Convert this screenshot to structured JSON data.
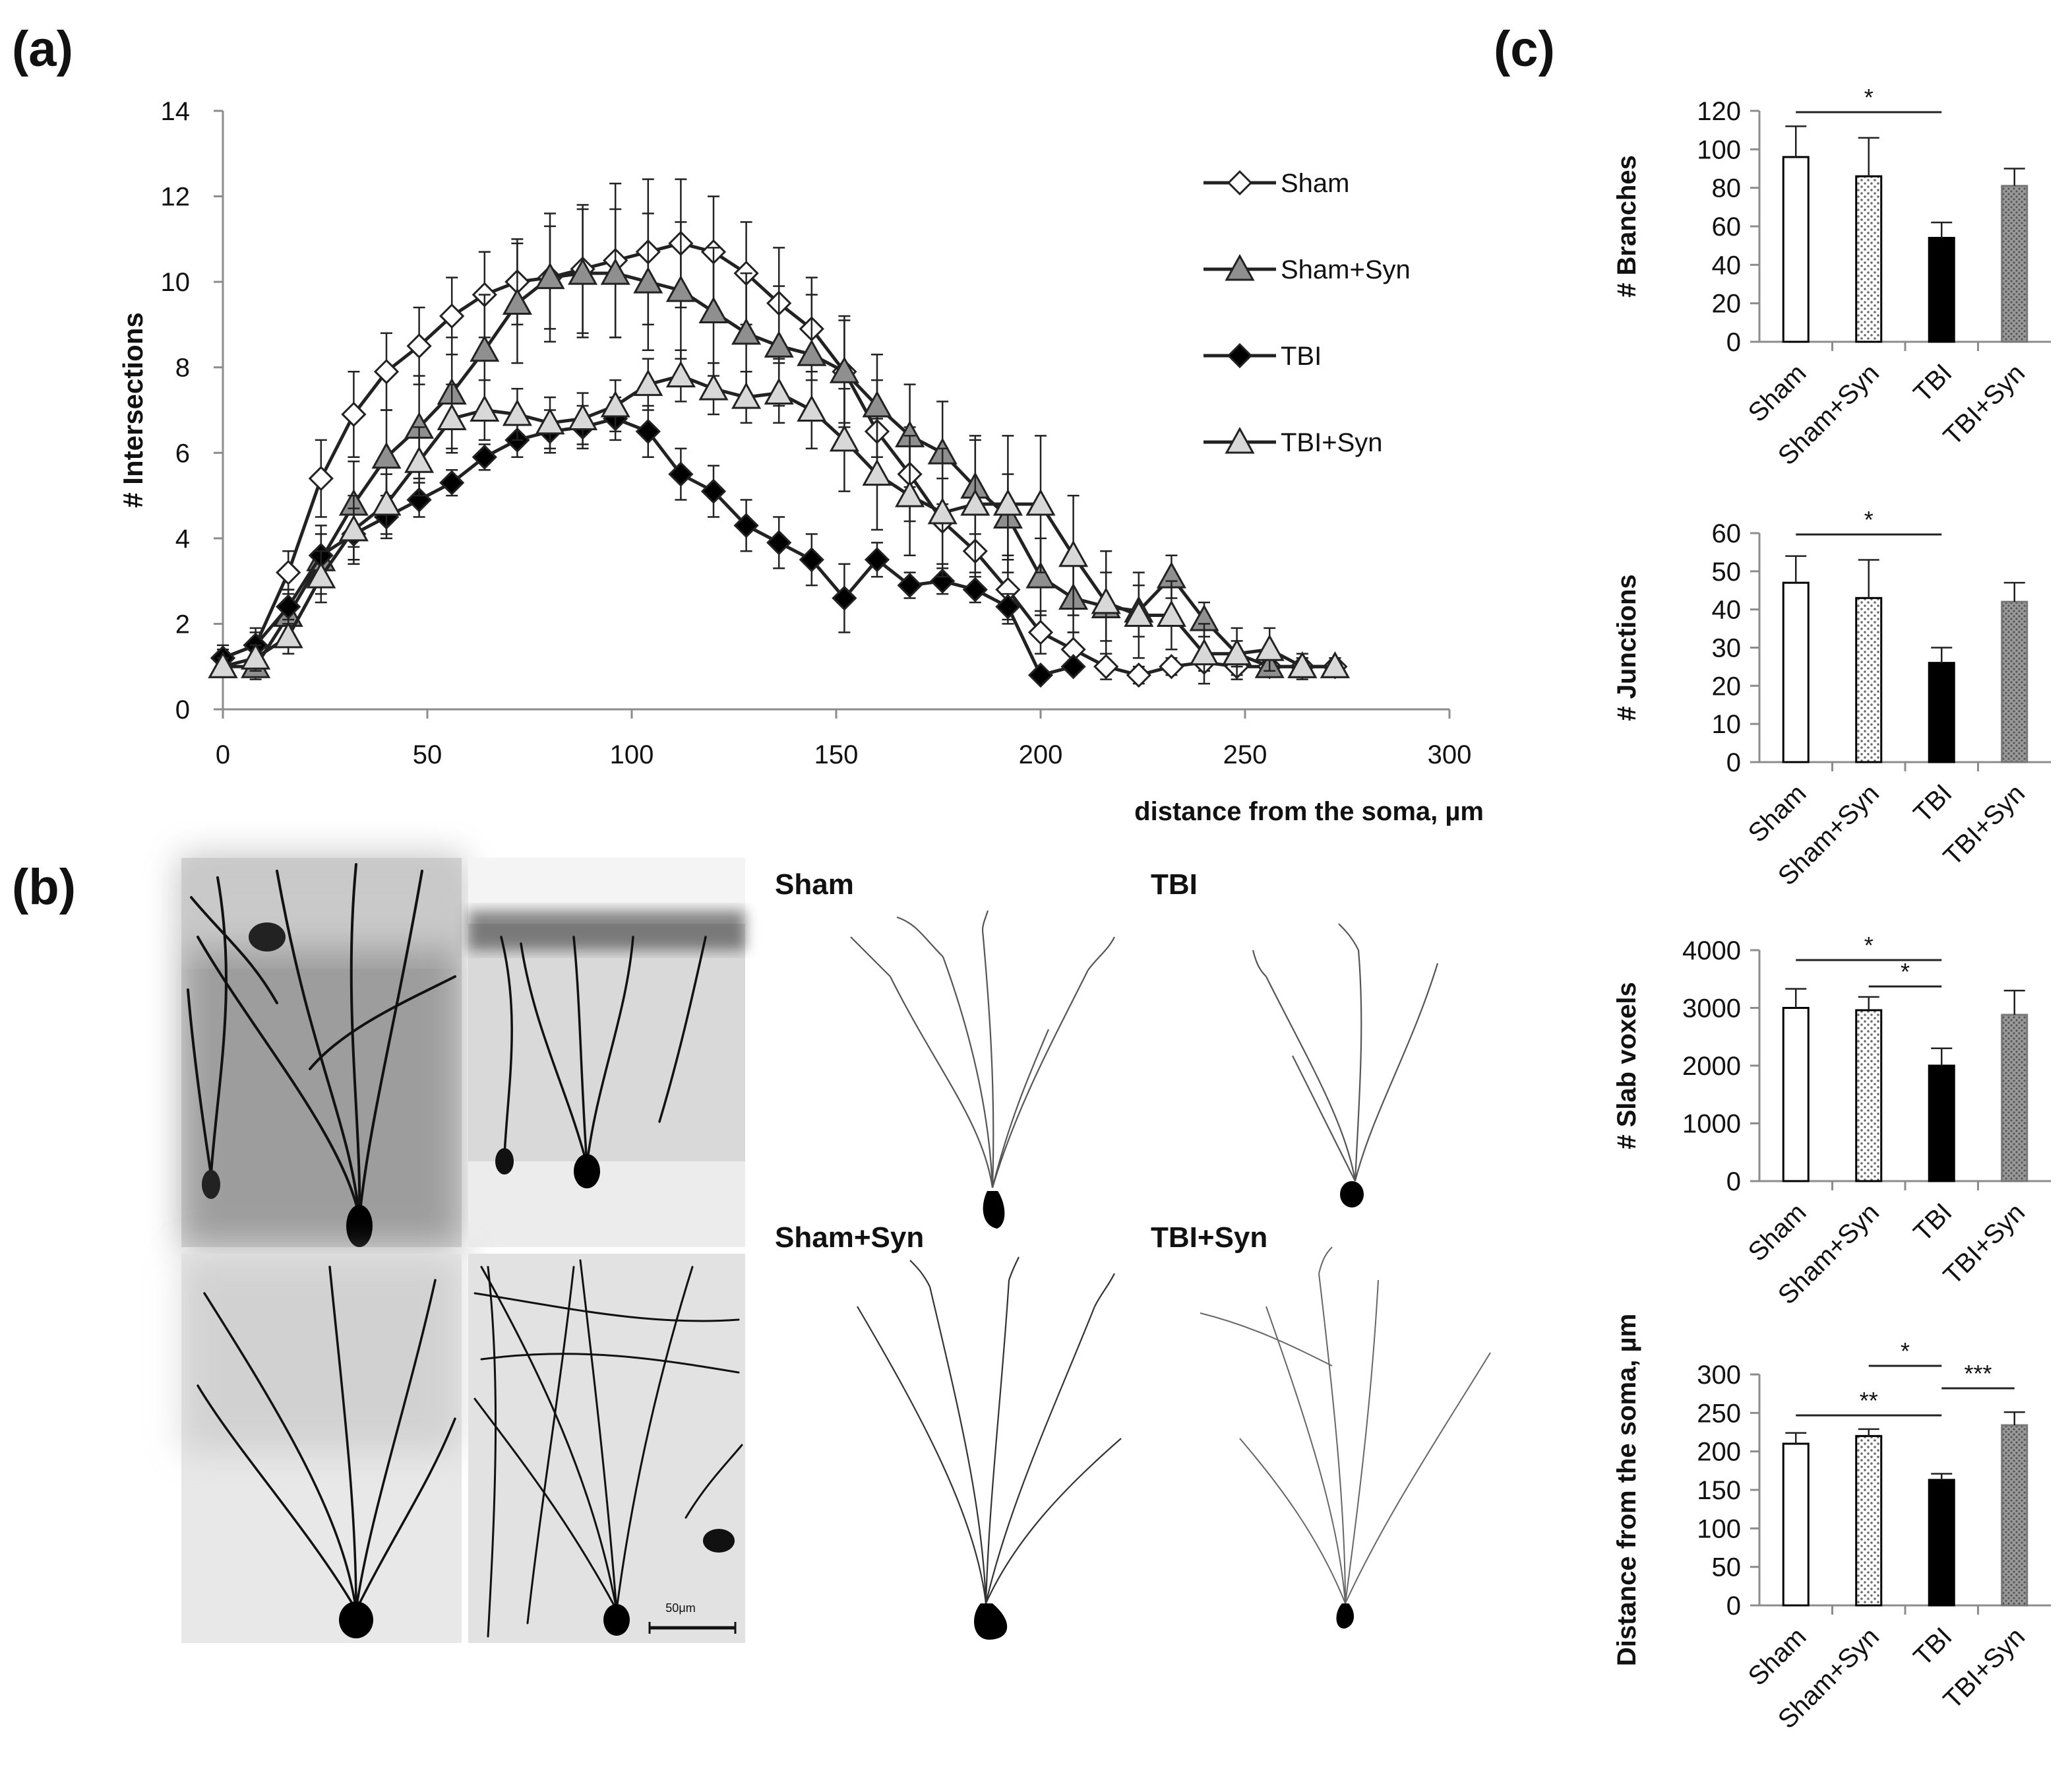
{
  "panel_labels": {
    "a": "(a)",
    "b": "(b)",
    "c": "(c)"
  },
  "colors": {
    "ink": "#111111",
    "grid_gray": "#8c8c8c",
    "sham_syn_fill": "#9a9a9a",
    "tbi_syn_fill": "#d6d6d6",
    "tbi_fill": "#000000",
    "sham_fill": "#ffffff"
  },
  "panel_b": {
    "labels": {
      "sham": "Sham",
      "tbi": "TBI",
      "sham_syn": "Sham+Syn",
      "tbi_syn": "TBI+Syn"
    },
    "scale_bar_label": "50μm"
  },
  "chart_data": [
    {
      "id": "sholl",
      "type": "line",
      "title": "",
      "xlabel": "distance from the soma, µm",
      "ylabel": "# Intersections",
      "xlim": [
        0,
        300
      ],
      "ylim": [
        0,
        14
      ],
      "xticks": [
        0,
        50,
        100,
        150,
        200,
        250,
        300
      ],
      "yticks": [
        0,
        2,
        4,
        6,
        8,
        10,
        12,
        14
      ],
      "legend_position": "right",
      "series": [
        {
          "name": "Sham",
          "marker": "diamond-open",
          "x": [
            0,
            8,
            16,
            24,
            32,
            40,
            48,
            56,
            64,
            72,
            80,
            88,
            96,
            104,
            112,
            120,
            128,
            136,
            144,
            152,
            160,
            168,
            176,
            184,
            192,
            200,
            208,
            216,
            224,
            232,
            240,
            248,
            256,
            264,
            272
          ],
          "y": [
            1.2,
            1.5,
            3.2,
            5.4,
            6.9,
            7.9,
            8.5,
            9.2,
            9.7,
            10.0,
            10.1,
            10.3,
            10.5,
            10.7,
            10.9,
            10.7,
            10.2,
            9.5,
            8.9,
            7.9,
            6.5,
            5.5,
            4.4,
            3.7,
            2.8,
            1.8,
            1.4,
            1.0,
            0.8,
            1.0,
            1.1,
            1.0,
            1.0,
            1.0,
            1.0
          ],
          "err": [
            0.3,
            0.4,
            0.5,
            0.9,
            1.0,
            0.9,
            0.9,
            0.9,
            1.0,
            1.0,
            1.2,
            1.5,
            1.8,
            1.7,
            1.5,
            1.3,
            1.2,
            1.3,
            1.2,
            1.2,
            1.2,
            1.1,
            1.0,
            0.9,
            0.8,
            0.5,
            0.4,
            0.3,
            0.2,
            0.2,
            0.2,
            0.2,
            0.2,
            0.2,
            0.2
          ]
        },
        {
          "name": "Sham+Syn",
          "marker": "triangle-dark",
          "x": [
            0,
            8,
            16,
            24,
            32,
            40,
            48,
            56,
            64,
            72,
            80,
            88,
            96,
            104,
            112,
            120,
            128,
            136,
            144,
            152,
            160,
            168,
            176,
            184,
            192,
            200,
            208,
            216,
            224,
            232,
            240,
            248,
            256,
            264,
            272
          ],
          "y": [
            1.0,
            1.0,
            2.2,
            3.5,
            4.8,
            5.9,
            6.6,
            7.4,
            8.4,
            9.5,
            10.1,
            10.2,
            10.2,
            10.0,
            9.8,
            9.3,
            8.8,
            8.5,
            8.3,
            7.9,
            7.1,
            6.4,
            6.0,
            5.2,
            4.5,
            3.1,
            2.6,
            2.4,
            2.3,
            3.1,
            2.1,
            1.3,
            1.0,
            1.0,
            1.0
          ],
          "err": [
            0.2,
            0.3,
            0.6,
            0.8,
            1.0,
            1.1,
            1.2,
            1.3,
            1.3,
            1.4,
            1.5,
            1.5,
            1.5,
            1.6,
            1.6,
            1.5,
            1.4,
            1.4,
            1.4,
            1.3,
            1.2,
            1.2,
            1.2,
            1.1,
            1.0,
            0.9,
            0.8,
            0.8,
            0.6,
            0.5,
            0.4,
            0.3,
            0.2,
            0.2,
            0.2
          ]
        },
        {
          "name": "TBI",
          "marker": "diamond-filled",
          "x": [
            0,
            8,
            16,
            24,
            32,
            40,
            48,
            56,
            64,
            72,
            80,
            88,
            96,
            104,
            112,
            120,
            128,
            136,
            144,
            152,
            160,
            168,
            176,
            184,
            192,
            200,
            208
          ],
          "y": [
            1.2,
            1.5,
            2.4,
            3.6,
            4.1,
            4.5,
            4.9,
            5.3,
            5.9,
            6.3,
            6.5,
            6.6,
            6.8,
            6.5,
            5.5,
            5.1,
            4.3,
            3.9,
            3.5,
            2.6,
            3.5,
            2.9,
            3.0,
            2.8,
            2.4,
            0.8,
            1.0
          ],
          "err": [
            0.2,
            0.3,
            0.4,
            0.5,
            0.6,
            0.5,
            0.4,
            0.3,
            0.3,
            0.4,
            0.5,
            0.5,
            0.5,
            0.6,
            0.6,
            0.6,
            0.6,
            0.6,
            0.6,
            0.8,
            0.4,
            0.3,
            0.3,
            0.3,
            0.3,
            0.1,
            0.1
          ]
        },
        {
          "name": "TBI+Syn",
          "marker": "triangle-light",
          "x": [
            0,
            8,
            16,
            24,
            32,
            40,
            48,
            56,
            64,
            72,
            80,
            88,
            96,
            104,
            112,
            120,
            128,
            136,
            144,
            152,
            160,
            168,
            176,
            184,
            192,
            200,
            208,
            216,
            224,
            232,
            240,
            248,
            256,
            264,
            272
          ],
          "y": [
            1.0,
            1.2,
            1.7,
            3.1,
            4.2,
            4.8,
            5.8,
            6.8,
            7.0,
            6.9,
            6.7,
            6.8,
            7.1,
            7.6,
            7.8,
            7.5,
            7.3,
            7.4,
            7.0,
            6.3,
            5.5,
            5.0,
            4.6,
            4.8,
            4.8,
            4.8,
            3.6,
            2.5,
            2.2,
            2.2,
            1.3,
            1.3,
            1.4,
            1.0,
            1.0
          ],
          "err": [
            0.2,
            0.3,
            0.4,
            0.6,
            0.8,
            0.7,
            0.8,
            0.8,
            0.7,
            0.6,
            0.6,
            0.6,
            0.6,
            0.6,
            0.6,
            0.6,
            0.6,
            0.7,
            0.9,
            1.2,
            1.3,
            1.4,
            1.5,
            1.6,
            1.6,
            1.6,
            1.4,
            1.2,
            1.0,
            0.8,
            0.7,
            0.6,
            0.5,
            0.3,
            0.2
          ]
        }
      ]
    },
    {
      "id": "branches",
      "type": "bar",
      "categories": [
        "Sham",
        "Sham+Syn",
        "TBI",
        "TBI+Syn"
      ],
      "values": [
        96,
        86,
        54,
        81
      ],
      "err": [
        16,
        20,
        8,
        9
      ],
      "ylabel": "# Branches",
      "ylim": [
        0,
        120
      ],
      "yticks": [
        0,
        20,
        40,
        60,
        80,
        100,
        120
      ],
      "significance": [
        {
          "from": 0,
          "to": 2,
          "label": "*"
        }
      ]
    },
    {
      "id": "junctions",
      "type": "bar",
      "categories": [
        "Sham",
        "Sham+Syn",
        "TBI",
        "TBI+Syn"
      ],
      "values": [
        47,
        43,
        26,
        42
      ],
      "err": [
        7,
        10,
        4,
        5
      ],
      "ylabel": "# Junctions",
      "ylim": [
        0,
        60
      ],
      "yticks": [
        0,
        10,
        20,
        30,
        40,
        50,
        60
      ],
      "significance": [
        {
          "from": 0,
          "to": 2,
          "label": "*"
        }
      ]
    },
    {
      "id": "slab",
      "type": "bar",
      "categories": [
        "Sham",
        "Sham+Syn",
        "TBI",
        "TBI+Syn"
      ],
      "values": [
        3000,
        2960,
        2000,
        2880
      ],
      "err": [
        330,
        230,
        300,
        420
      ],
      "ylabel": "# Slab voxels",
      "ylim": [
        0,
        4000
      ],
      "yticks": [
        0,
        1000,
        2000,
        3000,
        4000
      ],
      "significance": [
        {
          "from": 0,
          "to": 2,
          "label": "*"
        },
        {
          "from": 1,
          "to": 2,
          "label": "*"
        }
      ]
    },
    {
      "id": "distance",
      "type": "bar",
      "categories": [
        "Sham",
        "Sham+Syn",
        "TBI",
        "TBI+Syn"
      ],
      "values": [
        210,
        220,
        163,
        234
      ],
      "err": [
        14,
        9,
        8,
        17
      ],
      "ylabel": "Distance from the soma, µm",
      "ylim": [
        0,
        300
      ],
      "yticks": [
        0,
        50,
        100,
        150,
        200,
        250,
        300
      ],
      "significance": [
        {
          "from": 1,
          "to": 2,
          "label": "*"
        },
        {
          "from": 0,
          "to": 2,
          "label": "**"
        },
        {
          "from": 2,
          "to": 3,
          "label": "***"
        }
      ]
    }
  ]
}
